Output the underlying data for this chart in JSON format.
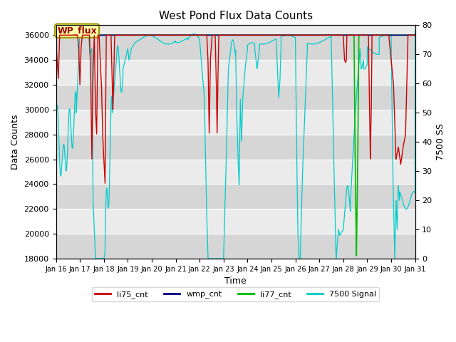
{
  "title": "West Pond Flux Data Counts",
  "xlabel": "Time",
  "ylabel_left": "Data Counts",
  "ylabel_right": "7500 SS",
  "ylim_left": [
    18000,
    36800
  ],
  "ylim_right": [
    0,
    80
  ],
  "yticks_left": [
    18000,
    20000,
    22000,
    24000,
    26000,
    28000,
    30000,
    32000,
    34000,
    36000
  ],
  "yticks_right": [
    0,
    10,
    20,
    30,
    40,
    50,
    60,
    70,
    80
  ],
  "xtick_labels": [
    "Jan 16",
    "Jan 17",
    "Jan 18",
    "Jan 19",
    "Jan 20",
    "Jan 21",
    "Jan 22",
    "Jan 23",
    "Jan 24",
    "Jan 25",
    "Jan 26",
    "Jan 27",
    "Jan 28",
    "Jan 29",
    "Jan 30",
    "Jan 31"
  ],
  "annotation_text": "WP_flux",
  "background_color": "#ffffff",
  "plot_bg_color": "#ebebeb",
  "li75_color": "#cc0000",
  "wmp_color": "#000080",
  "li77_color": "#00bb00",
  "signal7500_color": "#00cccc",
  "legend_items": [
    "li75_cnt",
    "wmp_cnt",
    "li77_cnt",
    "7500 Signal"
  ],
  "band_color": "#d4d4d4"
}
